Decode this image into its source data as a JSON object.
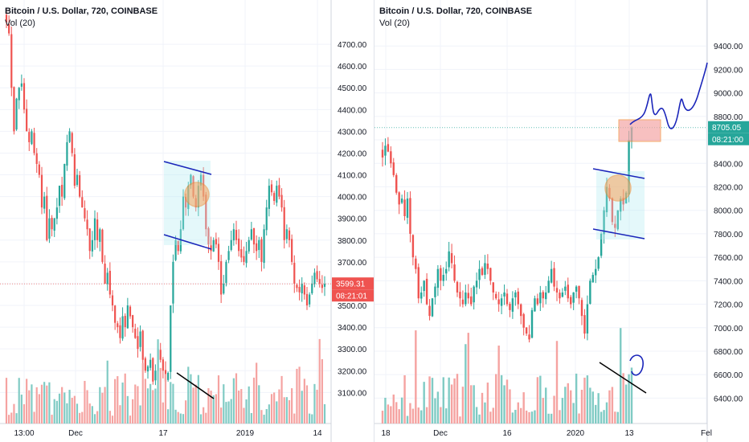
{
  "colors": {
    "up": "#26a69a",
    "down": "#ef5350",
    "vol_up": "#80cbc4",
    "vol_down": "#f5a3a1",
    "axis_text": "#131722",
    "grid": "#f0f3fa",
    "drawing": "#1a25ba",
    "marker": "#f28b30",
    "price_tag": "#ef5350",
    "price_tag_up": "#26a69a"
  },
  "chart_data": [
    {
      "type": "candlestick",
      "title": "Bitcoin / U.S. Dollar, 720, COINBASE",
      "volume_label": "Vol (20)",
      "ylim": [
        3020,
        4800
      ],
      "y_ticks": [
        "3100.00",
        "3200.00",
        "3300.00",
        "3400.00",
        "3500.00",
        "3600.00",
        "3700.00",
        "3800.00",
        "3900.00",
        "4000.00",
        "4100.00",
        "4200.00",
        "4300.00",
        "4400.00",
        "4500.00",
        "4600.00",
        "4700.00"
      ],
      "x_ticks": [
        "13:00",
        "Dec",
        "17",
        "2019",
        "14"
      ],
      "price_tag": "3599.31",
      "time_tag": "08:21:01",
      "close_series": [
        4800,
        4750,
        4500,
        4300,
        4450,
        4500,
        4520,
        4400,
        4300,
        4250,
        4300,
        4200,
        4150,
        4100,
        3950,
        4000,
        3800,
        3900,
        3850,
        3900,
        3950,
        4050,
        4000,
        4150,
        4250,
        4300,
        4200,
        4050,
        4100,
        4000,
        3950,
        3900,
        3850,
        3750,
        3800,
        3900,
        3800,
        3850,
        3700,
        3600,
        3650,
        3550,
        3500,
        3420,
        3400,
        3350,
        3450,
        3400,
        3500,
        3450,
        3400,
        3350,
        3300,
        3380,
        3250,
        3200,
        3220,
        3250,
        3150,
        3200,
        3300,
        3250,
        3200,
        3150,
        3190,
        3500,
        3700,
        3800,
        3750,
        3850,
        4000,
        3950,
        4050,
        4100,
        4000,
        3950,
        4050,
        4100,
        4000,
        3850,
        3780,
        3750,
        3800,
        3780,
        3700,
        3550,
        3600,
        3700,
        3750,
        3800,
        3850,
        3800,
        3750,
        3720,
        3700,
        3750,
        3800,
        3850,
        3780,
        3750,
        3800,
        3700,
        3850,
        3950,
        4050,
        4020,
        3980,
        4050,
        4000,
        3950,
        3800,
        3850,
        3800,
        3700,
        3600,
        3580,
        3560,
        3600,
        3550,
        3500,
        3550,
        3600,
        3650,
        3620,
        3600,
        3580,
        3599
      ]
    },
    {
      "type": "candlestick",
      "title": "Bitcoin / U.S. Dollar, 720, COINBASE",
      "volume_label": "Vol (20)",
      "ylim": [
        6300,
        9600
      ],
      "y_ticks": [
        "6400.00",
        "6600.00",
        "6800.00",
        "7000.00",
        "7200.00",
        "7400.00",
        "7600.00",
        "7800.00",
        "8000.00",
        "8200.00",
        "8400.00",
        "8600.00",
        "8800.00",
        "9000.00",
        "9200.00",
        "9400.00"
      ],
      "x_ticks": [
        "18",
        "Dec",
        "16",
        "2020",
        "13",
        "Fel"
      ],
      "price_tag": "8705.05",
      "time_tag": "08:21:00",
      "close_series": [
        8450,
        8550,
        8500,
        8400,
        8300,
        8150,
        8050,
        8100,
        7950,
        8100,
        7800,
        7600,
        7500,
        7250,
        7300,
        7400,
        7200,
        7100,
        7250,
        7350,
        7500,
        7400,
        7450,
        7500,
        7650,
        7550,
        7400,
        7300,
        7250,
        7200,
        7300,
        7250,
        7200,
        7350,
        7400,
        7500,
        7450,
        7550,
        7500,
        7400,
        7300,
        7250,
        7200,
        7250,
        7300,
        7200,
        7150,
        7250,
        7300,
        7200,
        7100,
        7000,
        6950,
        6900,
        7150,
        7250,
        7200,
        7300,
        7250,
        7300,
        7400,
        7500,
        7350,
        7300,
        7250,
        7300,
        7350,
        7250,
        7200,
        7300,
        7350,
        7250,
        7100,
        6950,
        7200,
        7400,
        7450,
        7500,
        7600,
        7800,
        8000,
        8200,
        8100,
        7900,
        7850,
        8000,
        8100,
        8050,
        8150,
        8600,
        8705
      ]
    }
  ]
}
